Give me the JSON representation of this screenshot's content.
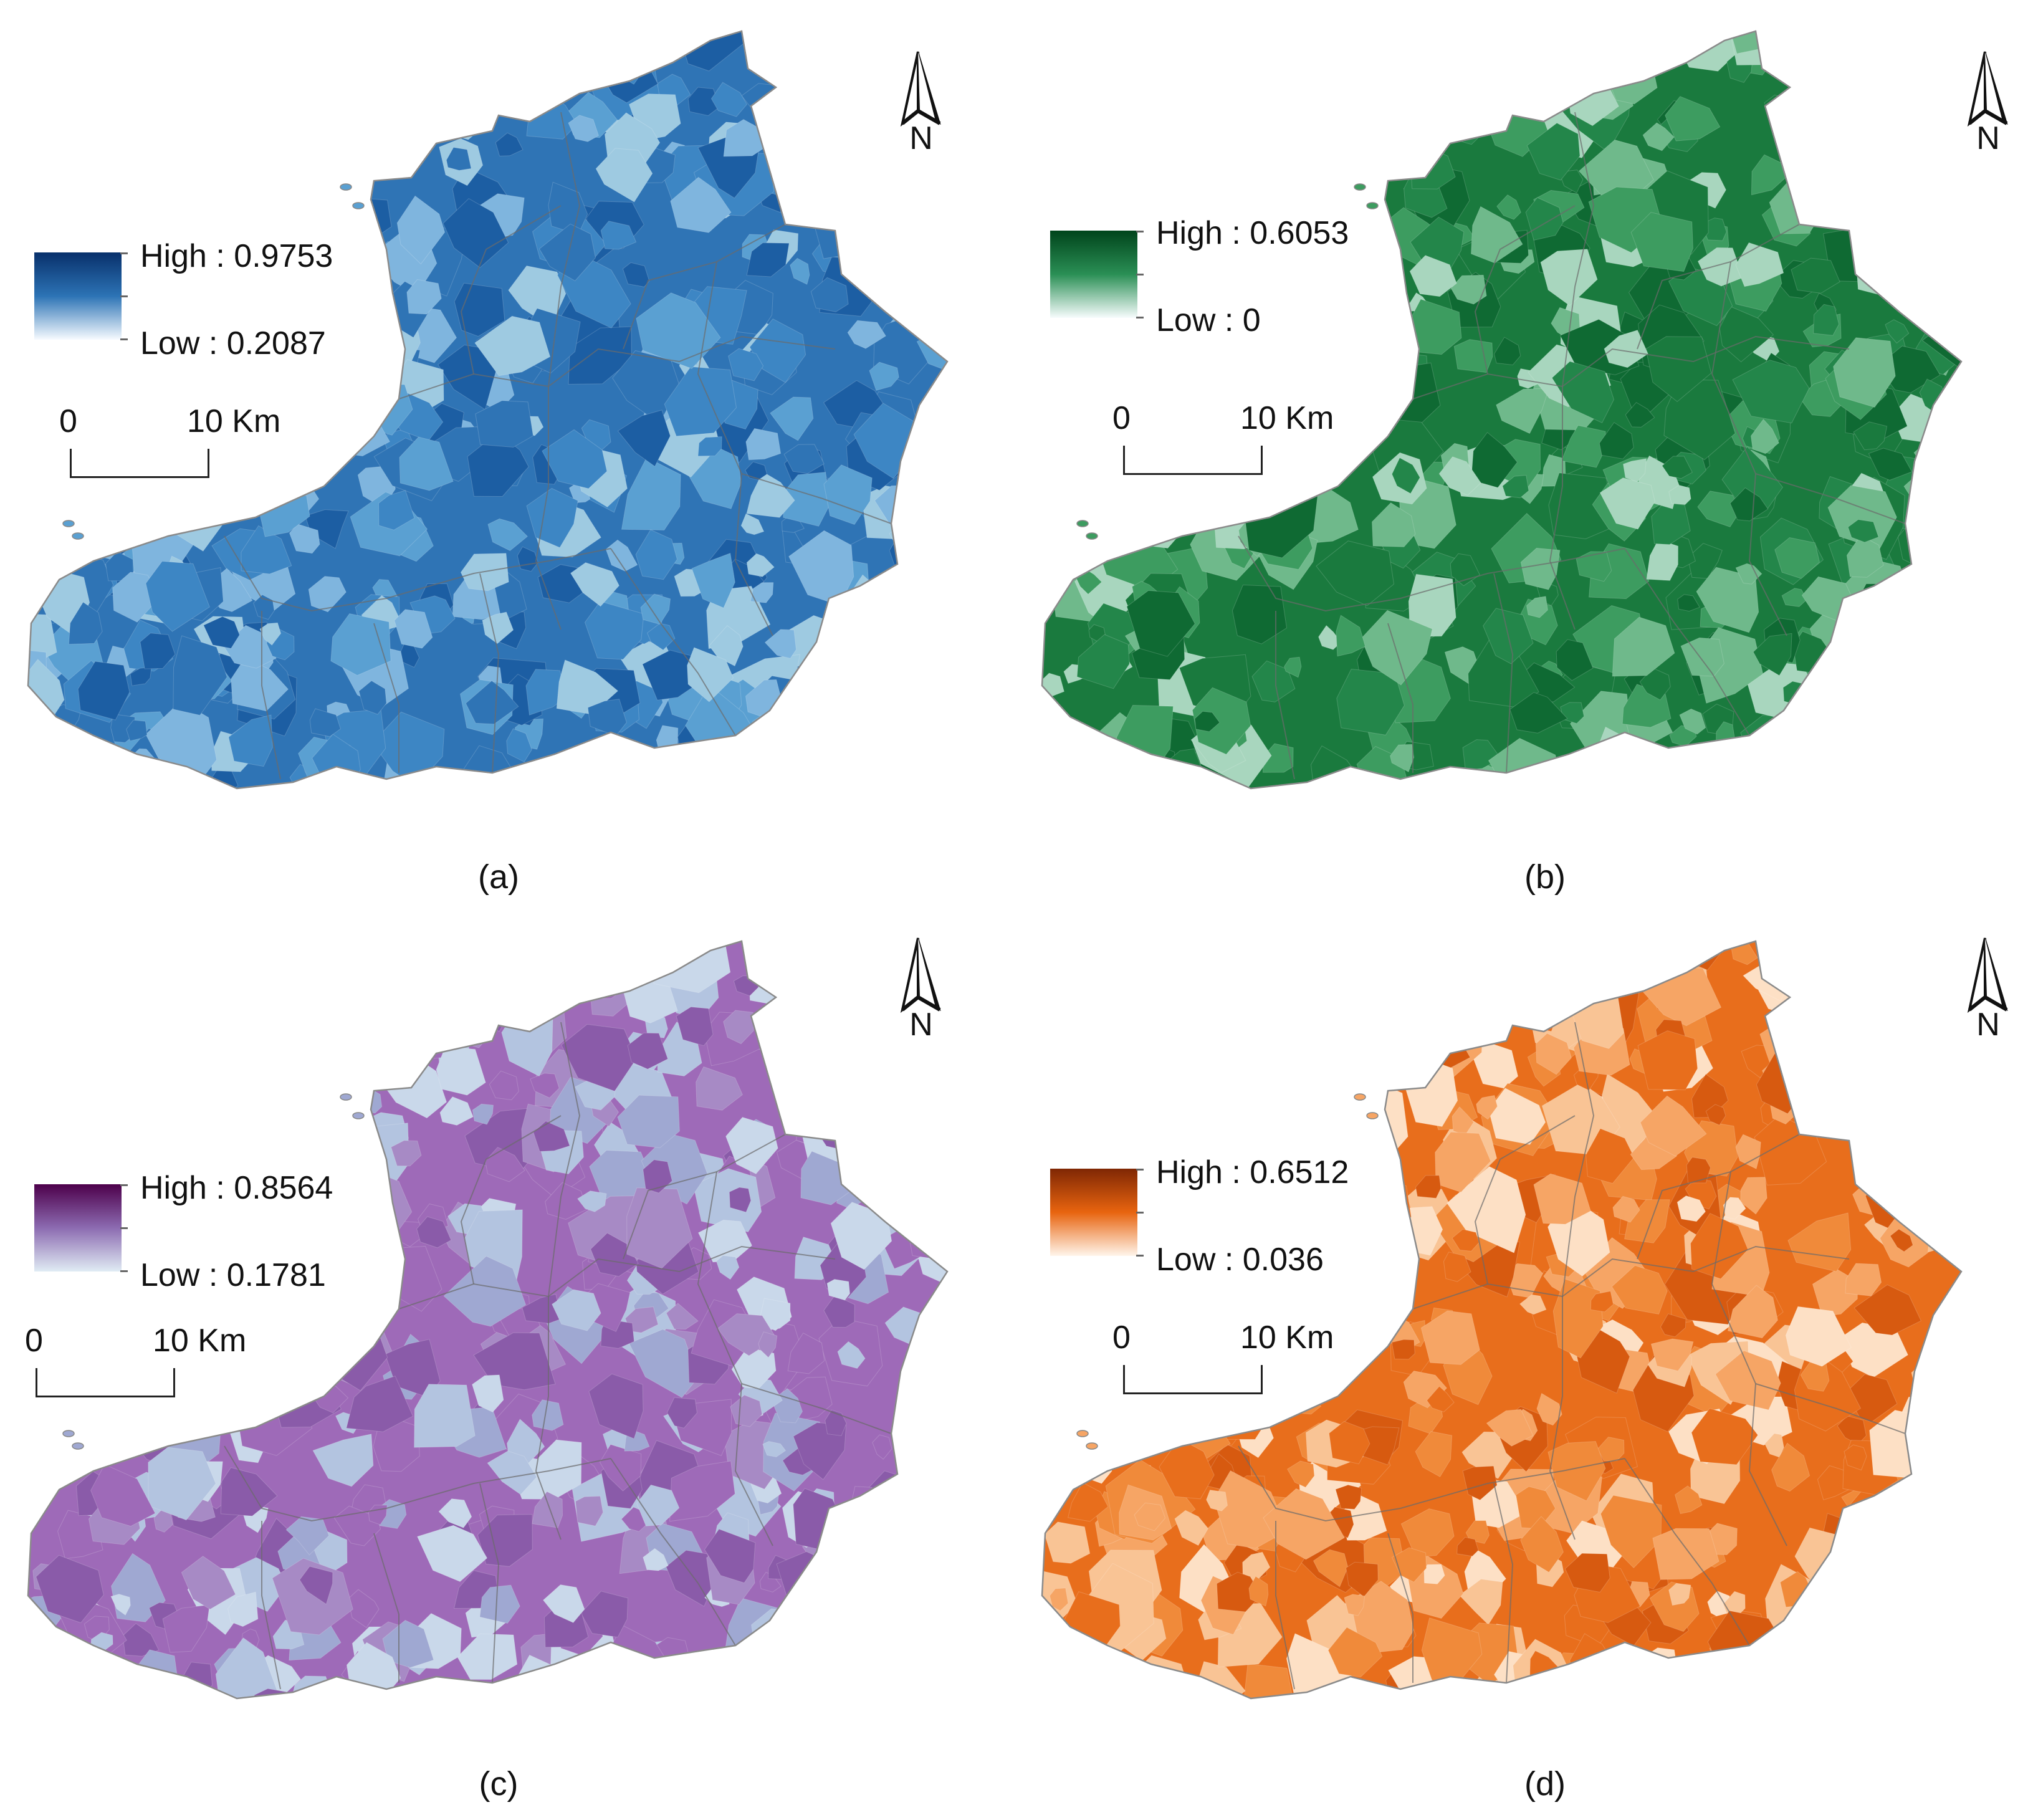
{
  "north_label": "N",
  "scale": {
    "zero": "0",
    "distance": "10 Km"
  },
  "panels": [
    {
      "id": "a",
      "caption": "(a)",
      "high_label": "High : 0.9753",
      "low_label": "Low : 0.2087",
      "high_value": 0.9753,
      "low_value": 0.2087,
      "ramp": [
        "#08306b",
        "#2c73b5",
        "#f7fbff"
      ],
      "fill_colors": [
        "#2f74b5",
        "#1c5ea3",
        "#3d86c4",
        "#5aa0d2",
        "#7fb5de",
        "#9ecae1",
        "#c6dbef"
      ]
    },
    {
      "id": "b",
      "caption": "(b)",
      "high_label": "High : 0.6053",
      "low_label": "Low : 0",
      "high_value": 0.6053,
      "low_value": 0,
      "ramp": [
        "#00441b",
        "#2a8f55",
        "#f7fcfd"
      ],
      "fill_colors": [
        "#1a7a3e",
        "#0f6a33",
        "#23864a",
        "#3d9c60",
        "#6fb98b",
        "#a8d6be",
        "#e5f5f9"
      ]
    },
    {
      "id": "c",
      "caption": "(c)",
      "high_label": "High : 0.8564",
      "low_label": "Low : 0.1781",
      "high_value": 0.8564,
      "low_value": 0.1781,
      "ramp": [
        "#4d004b",
        "#8c6bb1",
        "#e0ecf4"
      ],
      "fill_colors": [
        "#9e6ab8",
        "#8a5ba9",
        "#a78ac5",
        "#9fa8d2",
        "#b3c4e0",
        "#c9d8ea",
        "#7a1f78"
      ]
    },
    {
      "id": "d",
      "caption": "(d)",
      "high_label": "High : 0.6512",
      "low_label": "Low : 0.036",
      "high_value": 0.6512,
      "low_value": 0.036,
      "ramp": [
        "#7f2704",
        "#e8640f",
        "#fff5eb"
      ],
      "fill_colors": [
        "#e86e1c",
        "#d75a10",
        "#f08a3a",
        "#f6a565",
        "#f9c495",
        "#fde0c5",
        "#8a2d05"
      ]
    }
  ]
}
